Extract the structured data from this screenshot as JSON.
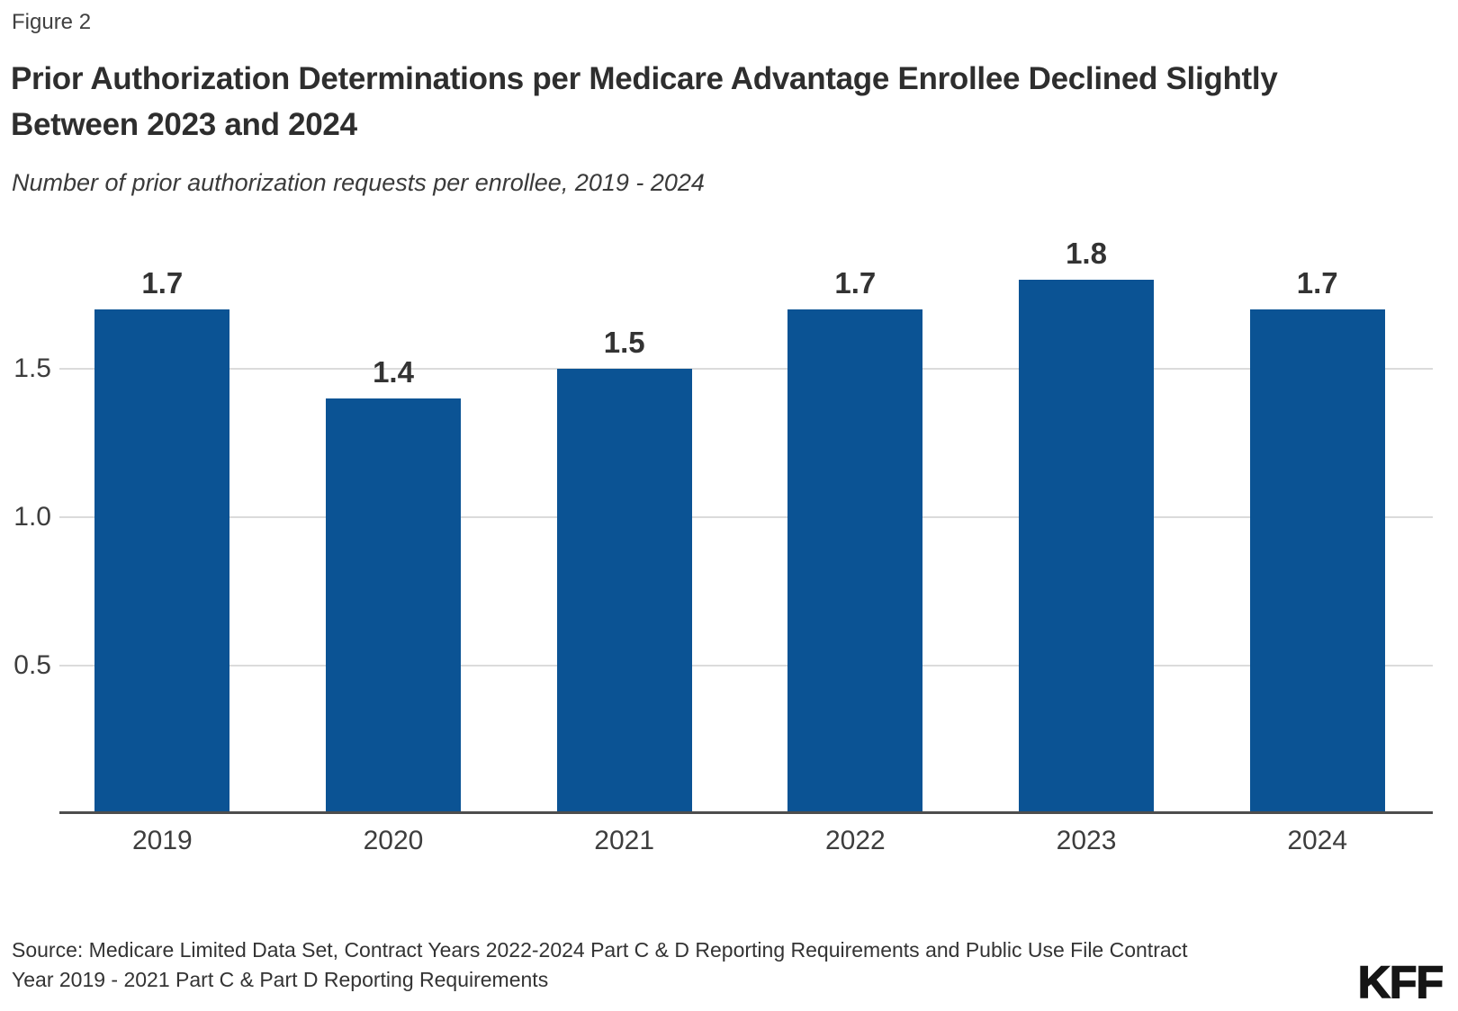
{
  "figure_label": "Figure 2",
  "chart_data": {
    "type": "bar",
    "title": "Prior Authorization Determinations per Medicare Advantage Enrollee Declined Slightly Between 2023 and 2024",
    "subtitle": "Number of prior authorization requests per enrollee, 2019 - 2024",
    "categories": [
      "2019",
      "2020",
      "2021",
      "2022",
      "2023",
      "2024"
    ],
    "values": [
      1.7,
      1.4,
      1.5,
      1.7,
      1.8,
      1.7
    ],
    "data_labels": [
      "1.7",
      "1.4",
      "1.5",
      "1.7",
      "1.8",
      "1.7"
    ],
    "yticks": [
      {
        "value": 0.5,
        "label": "0.5"
      },
      {
        "value": 1.0,
        "label": "1.0"
      },
      {
        "value": 1.5,
        "label": "1.5"
      }
    ],
    "ylim": [
      0,
      1.98
    ],
    "grid": true,
    "legend": "none",
    "colors": {
      "bar": "#0B5394",
      "gridline": "#DBDBDB",
      "axis": "#4D4D4D",
      "label_text": "#333333"
    }
  },
  "source": {
    "lines": [
      "Source: Medicare Limited Data Set, Contract Years 2022-2024 Part C & D Reporting Requirements and Public Use File Contract",
      "Year 2019 - 2021 Part C & Part D Reporting Requirements"
    ]
  },
  "logo_text": "KFF"
}
